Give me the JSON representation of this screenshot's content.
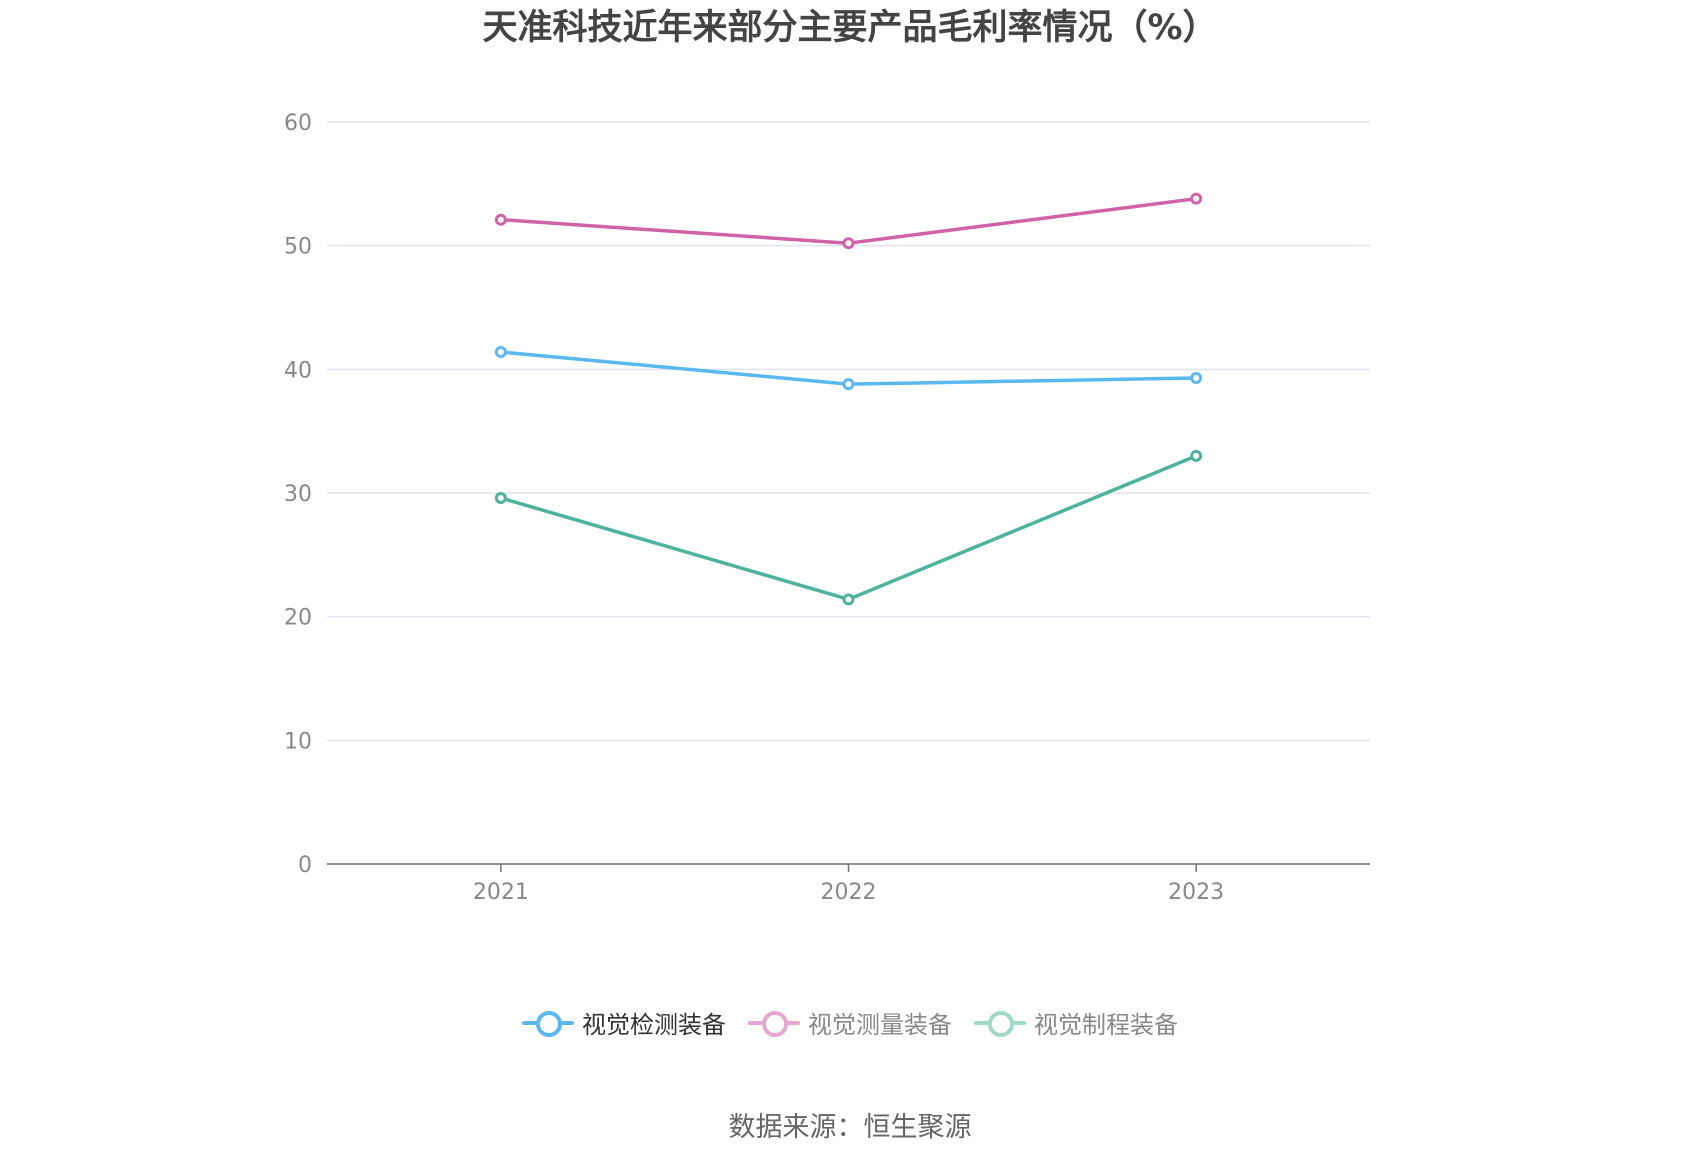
{
  "title": "天准科技近年来部分主要产品毛利率情况（%）",
  "source_text": "数据来源：恒生聚源",
  "chart_data": {
    "type": "line",
    "title": "天准科技近年来部分主要产品毛利率情况（%）",
    "xlabel": "",
    "ylabel": "",
    "categories": [
      "2021",
      "2022",
      "2023"
    ],
    "ylim": [
      0,
      60
    ],
    "yticks": [
      0,
      10,
      20,
      30,
      40,
      50,
      60
    ],
    "grid": true,
    "legend_position": "bottom",
    "series": [
      {
        "name": "视觉检测装备",
        "color": "#5bb8ef",
        "values": [
          41.4,
          38.8,
          39.3
        ],
        "active": true
      },
      {
        "name": "视觉测量装备",
        "color": "#d062a8",
        "values": [
          52.1,
          50.2,
          53.8
        ],
        "legend_color": "#e8a5d0",
        "active": false
      },
      {
        "name": "视觉制程装备",
        "color": "#4db39a",
        "values": [
          29.6,
          21.4,
          33.0
        ],
        "legend_color": "#9ed9c9",
        "active": false
      }
    ]
  }
}
